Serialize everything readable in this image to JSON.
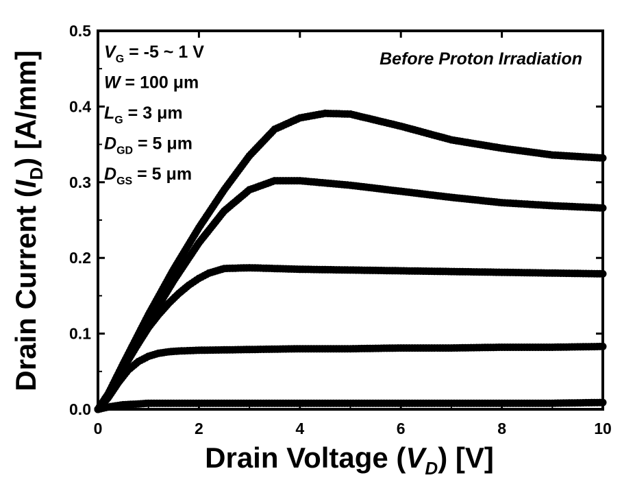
{
  "chart_data": {
    "type": "scatter",
    "title": "Before Proton Irradiation",
    "xlabel": {
      "main": "Drain Voltage (",
      "var": "V",
      "sub": "D",
      "unit": ") [V]"
    },
    "ylabel": {
      "main": "Drain Current (",
      "var": "I",
      "sub": "D",
      "unit": ") [A/mm]"
    },
    "xlim": [
      0,
      10
    ],
    "ylim": [
      0,
      0.5
    ],
    "xticks": [
      "0",
      "2",
      "4",
      "6",
      "8",
      "10"
    ],
    "yticks": [
      "0.0",
      "0.1",
      "0.2",
      "0.3",
      "0.4",
      "0.5"
    ],
    "grid": false,
    "conditions": [
      {
        "var": "V",
        "sub": "G",
        "text": " = -5 ~ 1 V"
      },
      {
        "var": "W",
        "sub": "",
        "text": " = 100 μm"
      },
      {
        "var": "L",
        "sub": "G",
        "text": " = 3 μm"
      },
      {
        "var": "D",
        "sub": "GD",
        "text": " = 5 μm"
      },
      {
        "var": "D",
        "sub": "GS",
        "text": " = 5 μm"
      }
    ],
    "series": [
      {
        "x": [
          0,
          0.2,
          0.5,
          0.8,
          1.0,
          1.5,
          2,
          3,
          4,
          5,
          6,
          7,
          8,
          9,
          10
        ],
        "y": [
          0,
          0.003,
          0.006,
          0.007,
          0.008,
          0.008,
          0.008,
          0.008,
          0.008,
          0.008,
          0.008,
          0.008,
          0.008,
          0.008,
          0.009
        ]
      },
      {
        "x": [
          0,
          0.2,
          0.4,
          0.6,
          0.8,
          1.0,
          1.2,
          1.4,
          1.6,
          2,
          3,
          4,
          5,
          6,
          7,
          8,
          9,
          10
        ],
        "y": [
          0,
          0.015,
          0.035,
          0.052,
          0.063,
          0.07,
          0.074,
          0.076,
          0.077,
          0.078,
          0.079,
          0.08,
          0.08,
          0.081,
          0.081,
          0.082,
          0.082,
          0.083
        ]
      },
      {
        "x": [
          0,
          0.2,
          0.4,
          0.6,
          0.8,
          1.0,
          1.2,
          1.4,
          1.6,
          1.8,
          2.0,
          2.2,
          2.5,
          3,
          4,
          5,
          6,
          7,
          8,
          9,
          10
        ],
        "y": [
          0,
          0.018,
          0.04,
          0.065,
          0.087,
          0.108,
          0.125,
          0.14,
          0.153,
          0.164,
          0.173,
          0.18,
          0.186,
          0.187,
          0.185,
          0.184,
          0.183,
          0.182,
          0.181,
          0.18,
          0.179
        ]
      },
      {
        "x": [
          0,
          0.2,
          0.5,
          1.0,
          1.5,
          2.0,
          2.5,
          3.0,
          3.5,
          4,
          5,
          6,
          7,
          8,
          9,
          10
        ],
        "y": [
          0,
          0.02,
          0.055,
          0.115,
          0.17,
          0.22,
          0.262,
          0.29,
          0.302,
          0.302,
          0.296,
          0.288,
          0.28,
          0.273,
          0.269,
          0.266
        ]
      },
      {
        "x": [
          0,
          0.2,
          0.5,
          1.0,
          1.5,
          2.0,
          2.5,
          3.0,
          3.5,
          4.0,
          4.5,
          5.0,
          6,
          7,
          8,
          9,
          10
        ],
        "y": [
          0,
          0.02,
          0.06,
          0.125,
          0.185,
          0.24,
          0.29,
          0.335,
          0.37,
          0.385,
          0.391,
          0.39,
          0.374,
          0.356,
          0.345,
          0.336,
          0.332
        ]
      }
    ]
  }
}
